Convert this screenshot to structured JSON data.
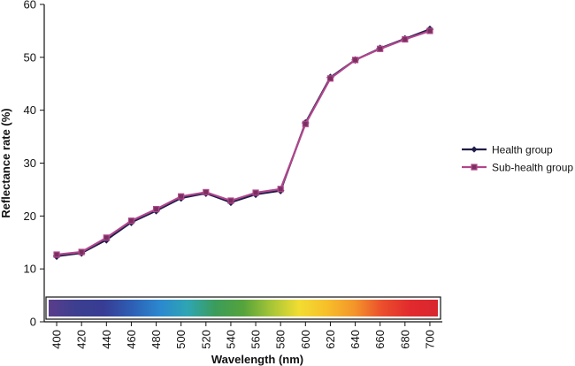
{
  "chart_data": {
    "type": "line",
    "xlabel": "Wavelength (nm)",
    "ylabel": "Reflectance rate (%)",
    "x": [
      400,
      420,
      440,
      460,
      480,
      500,
      520,
      540,
      560,
      580,
      600,
      620,
      640,
      660,
      680,
      700
    ],
    "xlim": [
      390,
      710
    ],
    "ylim": [
      0,
      60
    ],
    "yticks": [
      0,
      10,
      20,
      30,
      40,
      50,
      60
    ],
    "grid": false,
    "legend_position": "right",
    "series": [
      {
        "name": "Health group",
        "marker": "diamond",
        "color": "#1f1d4a",
        "values": [
          12.4,
          13.0,
          15.5,
          18.8,
          21.0,
          23.4,
          24.3,
          22.6,
          24.1,
          24.8,
          37.6,
          46.2,
          49.5,
          51.7,
          53.5,
          55.3
        ]
      },
      {
        "name": "Sub-health group",
        "marker": "square",
        "color": "#b0478d",
        "values": [
          12.7,
          13.2,
          15.9,
          19.1,
          21.3,
          23.7,
          24.5,
          22.9,
          24.4,
          25.1,
          37.4,
          46.0,
          49.5,
          51.6,
          53.4,
          55.0
        ]
      }
    ],
    "spectrum_colors": [
      "#5a3d8c",
      "#3c3e8f",
      "#373d94",
      "#2d5fb5",
      "#2b88cf",
      "#2ea5b3",
      "#3b9c5a",
      "#55a33b",
      "#a5c537",
      "#f1dd32",
      "#f7bf2a",
      "#f3952a",
      "#ea4e2c",
      "#e22a2e",
      "#d8262f"
    ]
  }
}
